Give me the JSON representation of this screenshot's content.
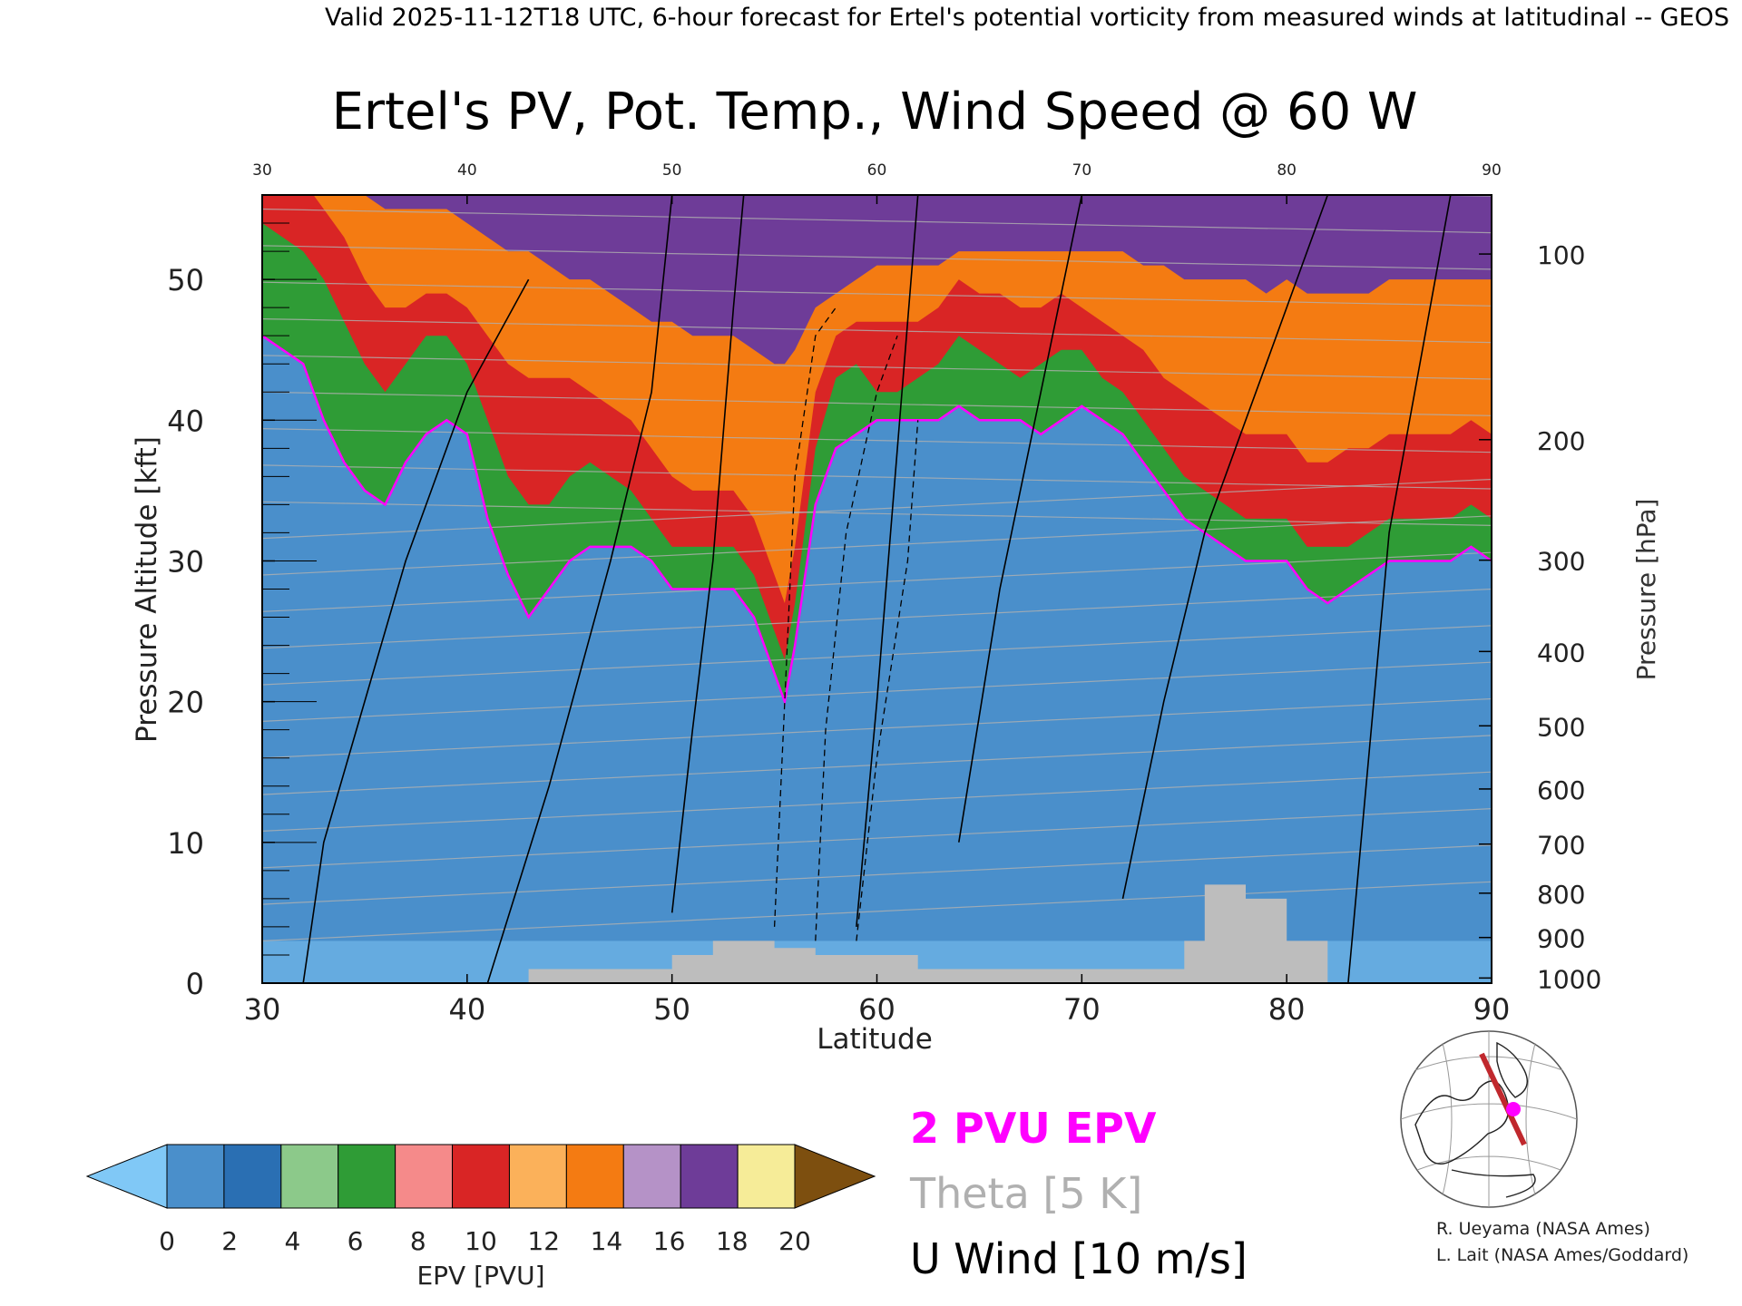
{
  "header": "Valid 2025-11-12T18 UTC, 6-hour forecast for Ertel's potential vorticity from measured winds at latitudinal -- GEOS",
  "chart_data": {
    "type": "heatmap",
    "title": "Ertel's PV, Pot. Temp., Wind Speed @ 60 W",
    "xlabel": "Latitude",
    "ylabel": "Pressure Altitude [kft]",
    "y2label": "Pressure [hPa]",
    "xlim": [
      30,
      90
    ],
    "ylim": [
      0,
      56
    ],
    "x_ticks": [
      "30",
      "40",
      "50",
      "60",
      "70",
      "80",
      "90"
    ],
    "y_ticks": [
      "0",
      "10",
      "20",
      "30",
      "40",
      "50"
    ],
    "pressure_ticks": [
      "100",
      "200",
      "300",
      "400",
      "500",
      "600",
      "700",
      "800",
      "900",
      "1000"
    ],
    "pressure_levels": [
      100,
      200,
      300,
      400,
      500,
      600,
      700,
      800,
      900,
      1000
    ],
    "pv_boundaries": {
      "lat": [
        30,
        31,
        32,
        33,
        34,
        35,
        36,
        37,
        38,
        39,
        40,
        41,
        42,
        43,
        44,
        45,
        46,
        47,
        48,
        49,
        50,
        51,
        52,
        53,
        54,
        55,
        55.5,
        56,
        57,
        58,
        59,
        60,
        61,
        62,
        63,
        64,
        65,
        66,
        67,
        68,
        69,
        70,
        71,
        72,
        73,
        74,
        75,
        76,
        77,
        78,
        79,
        80,
        81,
        82,
        83,
        84,
        85,
        86,
        87,
        88,
        89,
        90
      ],
      "pv2": [
        46,
        45,
        44,
        40,
        37,
        35,
        34,
        37,
        39,
        40,
        39,
        33,
        29,
        26,
        28,
        30,
        31,
        31,
        31,
        30,
        28,
        28,
        28,
        28,
        26,
        22,
        20,
        24,
        34,
        38,
        39,
        40,
        40,
        40,
        40,
        41,
        40,
        40,
        40,
        39,
        40,
        41,
        40,
        39,
        37,
        35,
        33,
        32,
        31,
        30,
        30,
        30,
        28,
        27,
        28,
        29,
        30,
        30,
        30,
        30,
        31,
        30
      ],
      "pv6": [
        54,
        53,
        52,
        50,
        47,
        44,
        42,
        44,
        46,
        46,
        44,
        40,
        36,
        34,
        34,
        36,
        37,
        36,
        35,
        33,
        31,
        31,
        31,
        31,
        29,
        25,
        23,
        27,
        38,
        43,
        44,
        42,
        42,
        43,
        44,
        46,
        45,
        44,
        43,
        44,
        45,
        45,
        43,
        42,
        40,
        38,
        36,
        35,
        34,
        33,
        33,
        33,
        31,
        31,
        31,
        32,
        33,
        33,
        33,
        33,
        34,
        33
      ],
      "pv10": [
        57,
        57,
        57,
        55,
        53,
        50,
        48,
        48,
        49,
        49,
        48,
        46,
        44,
        43,
        43,
        43,
        42,
        41,
        40,
        38,
        36,
        35,
        35,
        35,
        33,
        29,
        27,
        31,
        42,
        46,
        47,
        47,
        47,
        47,
        48,
        50,
        49,
        49,
        48,
        48,
        49,
        48,
        47,
        46,
        45,
        43,
        42,
        41,
        40,
        39,
        39,
        39,
        37,
        37,
        38,
        38,
        39,
        39,
        39,
        39,
        40,
        39
      ],
      "pv14": [
        57,
        57,
        57,
        57,
        57,
        56,
        55,
        55,
        55,
        55,
        54,
        53,
        52,
        52,
        51,
        50,
        50,
        49,
        48,
        47,
        47,
        46,
        46,
        46,
        45,
        44,
        44,
        45,
        48,
        49,
        50,
        51,
        51,
        51,
        51,
        52,
        52,
        52,
        52,
        52,
        52,
        52,
        52,
        52,
        51,
        51,
        50,
        50,
        50,
        50,
        49,
        50,
        49,
        49,
        49,
        49,
        50,
        50,
        50,
        50,
        50,
        50
      ]
    },
    "epv_colorbar": {
      "label": "EPV [PVU]",
      "ticks": [
        "0",
        "2",
        "4",
        "6",
        "8",
        "10",
        "12",
        "14",
        "16",
        "18",
        "20"
      ],
      "colors": [
        "#4a8fcb",
        "#2a6fb3",
        "#8cc98a",
        "#2f9c36",
        "#f58a8a",
        "#d92525",
        "#fbb15a",
        "#f47b12",
        "#b592c7",
        "#6e3c98",
        "#f6ec98",
        "#7d4f0f"
      ],
      "under_color": "#80c8f6",
      "over_color": "#7d4f0f"
    },
    "legend": {
      "pv_line": "2 PVU EPV",
      "pv_line_color": "#ff00ff",
      "theta": "Theta [5 K]",
      "theta_color": "#b0b0b0",
      "wind": "U Wind [10 m/s]",
      "wind_color": "#000000"
    },
    "terrain_color": "#bdbdbd",
    "terrain": {
      "lat": [
        30,
        43,
        43,
        50,
        50,
        52,
        52,
        55,
        55,
        57,
        57,
        62,
        62,
        75,
        75,
        76,
        76,
        78,
        78,
        80,
        80,
        82,
        82,
        90
      ],
      "height": [
        0,
        0,
        1,
        1,
        2,
        2,
        3,
        3,
        2.5,
        2.5,
        2,
        2,
        1,
        1,
        3,
        3,
        7,
        7,
        6,
        6,
        3,
        3,
        0,
        0
      ]
    },
    "credits": [
      "R. Ueyama (NASA Ames)",
      "L. Lait (NASA Ames/Goddard)"
    ]
  }
}
